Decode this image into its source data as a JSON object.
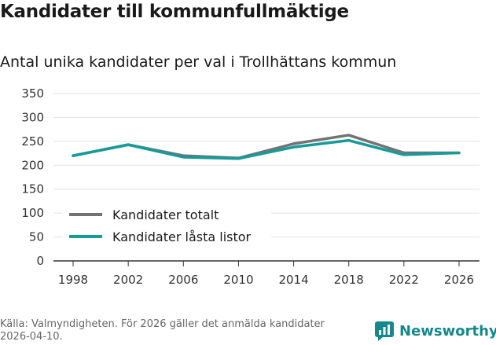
{
  "title": "Kandidater till kommunfullmäktige",
  "subtitle": "Antal unika kandidater per val i Trollhättans kommun",
  "source": "Källa: Valmyndigheten. För 2026 gäller det anmälda kandidater 2026-04-10.",
  "brand": "Newsworthy",
  "colors": {
    "totalt": "#737373",
    "lasta": "#169b9b",
    "brand": "#14888c"
  },
  "chart_data": {
    "type": "line",
    "title": "Kandidater till kommunfullmäktige",
    "subtitle": "Antal unika kandidater per val i Trollhättans kommun",
    "xlabel": "",
    "ylabel": "",
    "categories": [
      "1998",
      "2002",
      "2006",
      "2010",
      "2014",
      "2018",
      "2022",
      "2026"
    ],
    "ylim": [
      0,
      350
    ],
    "yticks": [
      0,
      50,
      100,
      150,
      200,
      250,
      300,
      350
    ],
    "grid": true,
    "legend": "bottom-left",
    "series": [
      {
        "name": "Kandidater totalt",
        "color": "#737373",
        "values": [
          220,
          243,
          220,
          215,
          245,
          263,
          226,
          226
        ]
      },
      {
        "name": "Kandidater låsta listor",
        "color": "#169b9b",
        "values": [
          220,
          243,
          217,
          214,
          238,
          252,
          222,
          226
        ]
      }
    ]
  }
}
